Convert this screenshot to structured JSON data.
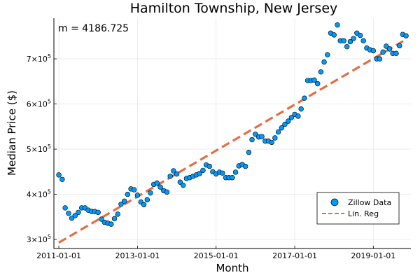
{
  "chart_data": {
    "type": "scatter",
    "title": "Hamilton Township, New Jersey",
    "xlabel": "Month",
    "ylabel": "Median Price ($)",
    "annotation": "m = 4186.725",
    "grid": true,
    "legend_position": "bottom-right",
    "xlim": [
      "2010-11-16",
      "2019-12-16"
    ],
    "ylim": [
      280000,
      790000
    ],
    "x_ticks": [
      "2011-01-01",
      "2013-01-01",
      "2015-01-01",
      "2017-01-01",
      "2019-01-01"
    ],
    "y_ticks": [
      {
        "value": 300000,
        "mantissa": "3",
        "base": "×10",
        "exp": "5"
      },
      {
        "value": 400000,
        "mantissa": "4",
        "base": "×10",
        "exp": "5"
      },
      {
        "value": 500000,
        "mantissa": "5",
        "base": "×10",
        "exp": "5"
      },
      {
        "value": 600000,
        "mantissa": "6",
        "base": "×10",
        "exp": "5"
      },
      {
        "value": 700000,
        "mantissa": "7",
        "base": "×10",
        "exp": "5"
      }
    ],
    "series": [
      {
        "name": "Zillow Data",
        "kind": "scatter",
        "color": "#009AFA",
        "x": [
          "2011-01",
          "2011-02",
          "2011-03",
          "2011-04",
          "2011-05",
          "2011-06",
          "2011-07",
          "2011-08",
          "2011-09",
          "2011-10",
          "2011-11",
          "2011-12",
          "2012-01",
          "2012-02",
          "2012-03",
          "2012-04",
          "2012-05",
          "2012-06",
          "2012-07",
          "2012-08",
          "2012-09",
          "2012-10",
          "2012-11",
          "2012-12",
          "2013-01",
          "2013-02",
          "2013-03",
          "2013-04",
          "2013-05",
          "2013-06",
          "2013-07",
          "2013-08",
          "2013-09",
          "2013-10",
          "2013-11",
          "2013-12",
          "2014-01",
          "2014-02",
          "2014-03",
          "2014-04",
          "2014-05",
          "2014-06",
          "2014-07",
          "2014-08",
          "2014-09",
          "2014-10",
          "2014-11",
          "2014-12",
          "2015-01",
          "2015-02",
          "2015-03",
          "2015-04",
          "2015-05",
          "2015-06",
          "2015-07",
          "2015-08",
          "2015-09",
          "2015-10",
          "2015-11",
          "2015-12",
          "2016-01",
          "2016-02",
          "2016-03",
          "2016-04",
          "2016-05",
          "2016-06",
          "2016-07",
          "2016-08",
          "2016-09",
          "2016-10",
          "2016-11",
          "2016-12",
          "2017-01",
          "2017-02",
          "2017-03",
          "2017-04",
          "2017-05",
          "2017-06",
          "2017-07",
          "2017-08",
          "2017-09",
          "2017-10",
          "2017-11",
          "2017-12",
          "2018-01",
          "2018-02",
          "2018-03",
          "2018-04",
          "2018-05",
          "2018-06",
          "2018-07",
          "2018-08",
          "2018-09",
          "2018-10",
          "2018-11",
          "2018-12",
          "2019-01",
          "2019-02",
          "2019-03",
          "2019-04",
          "2019-05",
          "2019-06",
          "2019-07",
          "2019-08",
          "2019-09",
          "2019-10",
          "2019-11"
        ],
        "y": [
          443000,
          433000,
          370000,
          358000,
          347000,
          353000,
          360000,
          370000,
          370000,
          365000,
          362000,
          362000,
          360000,
          345000,
          338000,
          336000,
          334000,
          346000,
          356000,
          378000,
          385000,
          400000,
          412000,
          410000,
          398000,
          383000,
          377000,
          388000,
          403000,
          422000,
          425000,
          416000,
          408000,
          405000,
          440000,
          452000,
          445000,
          427000,
          420000,
          435000,
          437000,
          440000,
          443000,
          446000,
          453000,
          465000,
          462000,
          450000,
          445000,
          449000,
          447000,
          437000,
          437000,
          437000,
          449000,
          463000,
          466000,
          462000,
          493000,
          521000,
          533000,
          527000,
          528000,
          518000,
          518000,
          515000,
          525000,
          538000,
          547000,
          555000,
          562000,
          570000,
          577000,
          573000,
          589000,
          613000,
          652000,
          652000,
          653000,
          645000,
          671000,
          693000,
          709000,
          757000,
          753000,
          775000,
          740000,
          740000,
          727000,
          738000,
          745000,
          757000,
          752000,
          740000,
          724000,
          720000,
          718000,
          700000,
          700000,
          715000,
          728000,
          722000,
          712000,
          712000,
          729000,
          754000,
          751000
        ]
      },
      {
        "name": "Lin. Reg",
        "kind": "line",
        "color": "#E26F46",
        "style": "dashed",
        "x": [
          "2011-01",
          "2019-11"
        ],
        "y": [
          293000,
          743000
        ]
      }
    ]
  }
}
